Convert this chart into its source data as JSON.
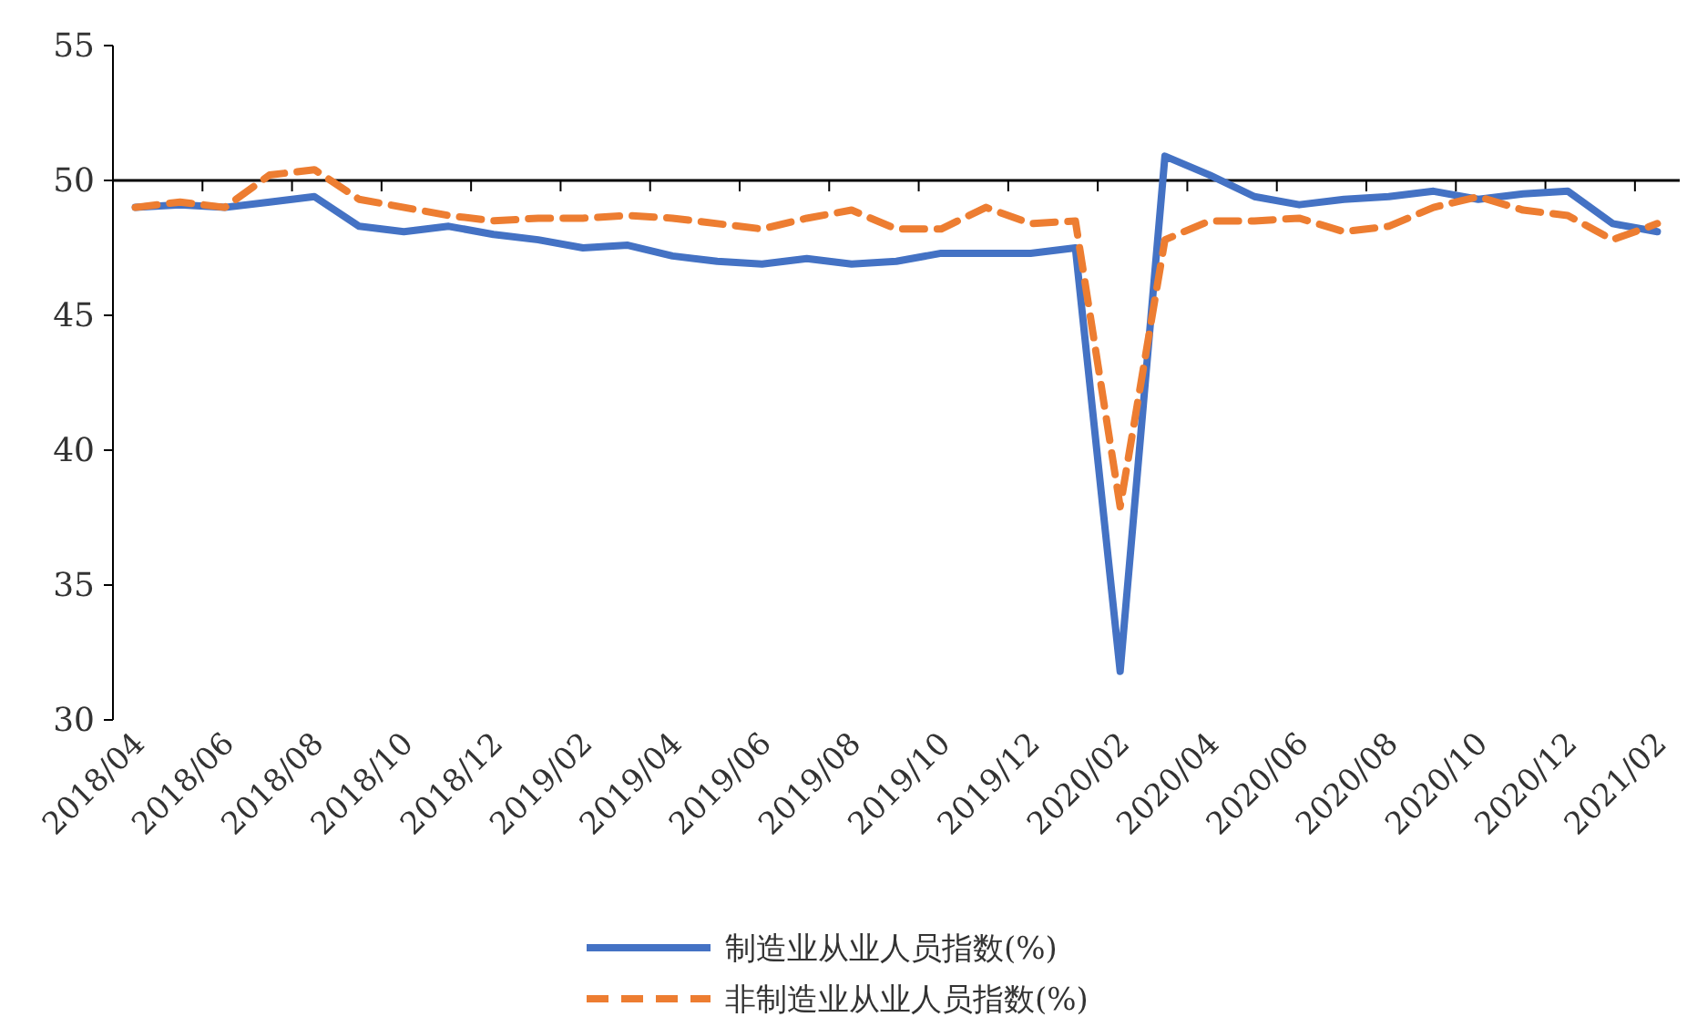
{
  "chart_data": {
    "type": "line",
    "categories": [
      "2018/04",
      null,
      "2018/06",
      null,
      "2018/08",
      null,
      "2018/10",
      null,
      "2018/12",
      null,
      "2019/02",
      null,
      "2019/04",
      null,
      "2019/06",
      null,
      "2019/08",
      null,
      "2019/10",
      null,
      "2019/12",
      null,
      "2020/02",
      null,
      "2020/04",
      null,
      "2020/06",
      null,
      "2020/08",
      null,
      "2020/10",
      null,
      "2020/12",
      null,
      "2021/02"
    ],
    "series": [
      {
        "name": "制造业从业人员指数(%)",
        "color": "#4472c4",
        "line_style": "solid",
        "values": [
          49.0,
          49.1,
          49.0,
          49.2,
          49.4,
          48.3,
          48.1,
          48.3,
          48.0,
          47.8,
          47.5,
          47.6,
          47.2,
          47.0,
          46.9,
          47.1,
          46.9,
          47.0,
          47.3,
          47.3,
          47.3,
          47.5,
          31.8,
          50.9,
          50.2,
          49.4,
          49.1,
          49.3,
          49.4,
          49.6,
          49.3,
          49.5,
          49.6,
          48.4,
          48.1
        ]
      },
      {
        "name": "非制造业从业人员指数(%)",
        "color": "#ed7d31",
        "line_style": "dashed",
        "values": [
          49.0,
          49.2,
          49.0,
          50.2,
          50.4,
          49.3,
          49.0,
          48.7,
          48.5,
          48.6,
          48.6,
          48.7,
          48.6,
          48.4,
          48.2,
          48.6,
          48.9,
          48.2,
          48.2,
          49.0,
          48.4,
          48.5,
          37.9,
          47.8,
          48.5,
          48.5,
          48.6,
          48.1,
          48.3,
          49.0,
          49.4,
          48.9,
          48.7,
          47.8,
          48.4
        ]
      }
    ],
    "ylim": [
      30,
      55
    ],
    "yticks": [
      30,
      35,
      40,
      45,
      50,
      55
    ],
    "ref_lines": [
      {
        "axis": "y",
        "value": 50,
        "color": "#000000"
      }
    ],
    "legend": "bottom",
    "marker": "none",
    "grid": false
  }
}
